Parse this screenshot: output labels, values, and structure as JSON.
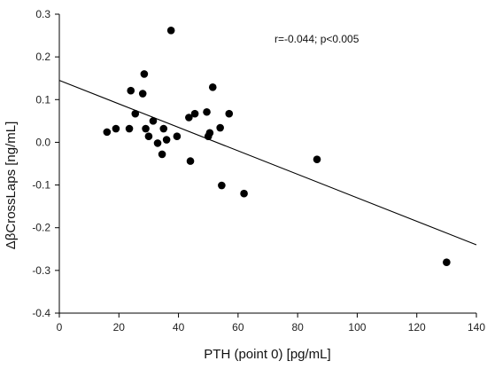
{
  "chart_data": {
    "type": "scatter",
    "xlabel": "PTH (point 0) [pg/mL]",
    "ylabel": "ΔβCrossLaps [ng/mL]",
    "annotation": "r=-0.044; p<0.005",
    "xlim": [
      0,
      140
    ],
    "ylim": [
      -0.4,
      0.3
    ],
    "x_ticks": [
      0,
      20,
      40,
      60,
      80,
      100,
      120,
      140
    ],
    "y_ticks": [
      -0.4,
      -0.3,
      -0.2,
      -0.1,
      0.0,
      0.1,
      0.2,
      0.3
    ],
    "x_tick_labels": [
      "0",
      "20",
      "40",
      "60",
      "80",
      "100",
      "120",
      "140"
    ],
    "y_tick_labels": [
      "-0.4",
      "-0.3",
      "-0.2",
      "-0.1",
      "0.0",
      "0.1",
      "0.2",
      "0.3"
    ],
    "grid": false,
    "regression_line": {
      "x": [
        0,
        140
      ],
      "y": [
        0.145,
        -0.24
      ]
    },
    "points": [
      {
        "x": 16,
        "y": 0.024
      },
      {
        "x": 19,
        "y": 0.032
      },
      {
        "x": 23.5,
        "y": 0.032
      },
      {
        "x": 24,
        "y": 0.121
      },
      {
        "x": 25.5,
        "y": 0.067
      },
      {
        "x": 28,
        "y": 0.114
      },
      {
        "x": 28.5,
        "y": 0.16
      },
      {
        "x": 29,
        "y": 0.032
      },
      {
        "x": 30,
        "y": 0.014
      },
      {
        "x": 31.5,
        "y": 0.05
      },
      {
        "x": 33,
        "y": -0.002
      },
      {
        "x": 34.5,
        "y": -0.028
      },
      {
        "x": 35,
        "y": 0.032
      },
      {
        "x": 36,
        "y": 0.006
      },
      {
        "x": 37.5,
        "y": 0.262
      },
      {
        "x": 39.5,
        "y": 0.014
      },
      {
        "x": 43.5,
        "y": 0.058
      },
      {
        "x": 44,
        "y": -0.044
      },
      {
        "x": 45.5,
        "y": 0.067
      },
      {
        "x": 49.5,
        "y": 0.071
      },
      {
        "x": 50,
        "y": 0.014
      },
      {
        "x": 50.5,
        "y": 0.022
      },
      {
        "x": 51.5,
        "y": 0.129
      },
      {
        "x": 54,
        "y": 0.034
      },
      {
        "x": 54.5,
        "y": -0.101
      },
      {
        "x": 57,
        "y": 0.067
      },
      {
        "x": 62,
        "y": -0.12
      },
      {
        "x": 86.5,
        "y": -0.04
      },
      {
        "x": 130,
        "y": -0.281
      }
    ],
    "colors": {
      "marker": "#000000",
      "line": "#000000",
      "axis": "#000000"
    }
  }
}
